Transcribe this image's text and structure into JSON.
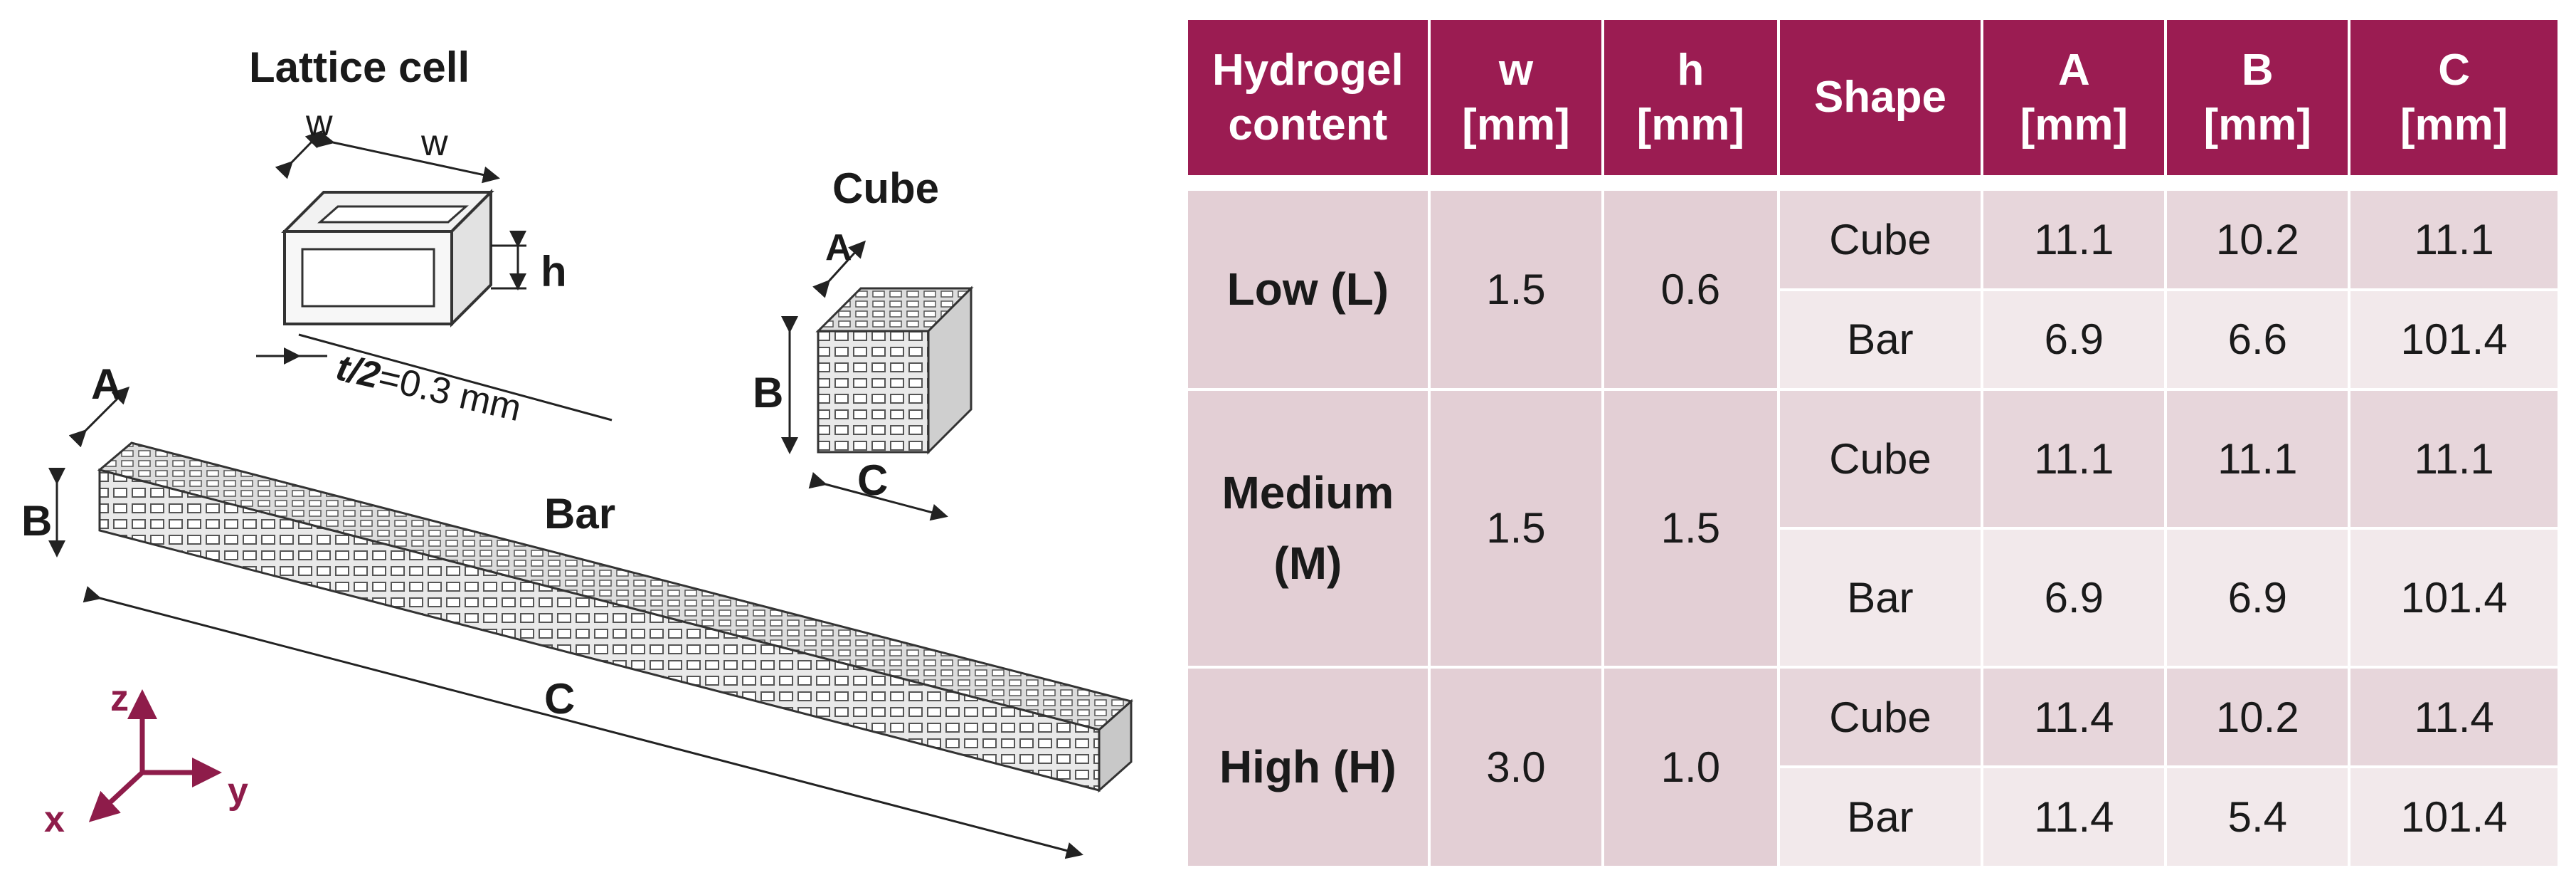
{
  "figure": {
    "lattice_title": "Lattice cell",
    "lattice_w1": "w",
    "lattice_w2": "w",
    "lattice_h": "h",
    "lattice_t": "t/2",
    "lattice_t_value": "=0.3 mm",
    "cube_title": "Cube",
    "cube_a": "A",
    "cube_b": "B",
    "cube_c": "C",
    "bar_title": "Bar",
    "bar_a": "A",
    "bar_b": "B",
    "bar_c": "C",
    "axis_z": "z",
    "axis_y": "y",
    "axis_x": "x",
    "accent_color": "#8e1c4a"
  },
  "table": {
    "header_color": "#9b1c52",
    "headers": [
      {
        "line1": "Hydrogel",
        "line2": "content"
      },
      {
        "line1": "w",
        "line2": "[mm]"
      },
      {
        "line1": "h",
        "line2": "[mm]"
      },
      {
        "line1": "Shape",
        "line2": ""
      },
      {
        "line1": "A",
        "line2": "[mm]"
      },
      {
        "line1": "B",
        "line2": "[mm]"
      },
      {
        "line1": "C",
        "line2": "[mm]"
      }
    ],
    "groups": [
      {
        "content_line1": "Low (L)",
        "content_line2": "",
        "w": "1.5",
        "h": "0.6",
        "rows": [
          {
            "shape": "Cube",
            "A": "11.1",
            "B": "10.2",
            "C": "11.1"
          },
          {
            "shape": "Bar",
            "A": "6.9",
            "B": "6.6",
            "C": "101.4"
          }
        ]
      },
      {
        "content_line1": "Medium",
        "content_line2": "(M)",
        "w": "1.5",
        "h": "1.5",
        "rows": [
          {
            "shape": "Cube",
            "A": "11.1",
            "B": "11.1",
            "C": "11.1"
          },
          {
            "shape": "Bar",
            "A": "6.9",
            "B": "6.9",
            "C": "101.4"
          }
        ]
      },
      {
        "content_line1": "High (H)",
        "content_line2": "",
        "w": "3.0",
        "h": "1.0",
        "rows": [
          {
            "shape": "Cube",
            "A": "11.4",
            "B": "10.2",
            "C": "11.4"
          },
          {
            "shape": "Bar",
            "A": "11.4",
            "B": "5.4",
            "C": "101.4"
          }
        ]
      }
    ]
  }
}
